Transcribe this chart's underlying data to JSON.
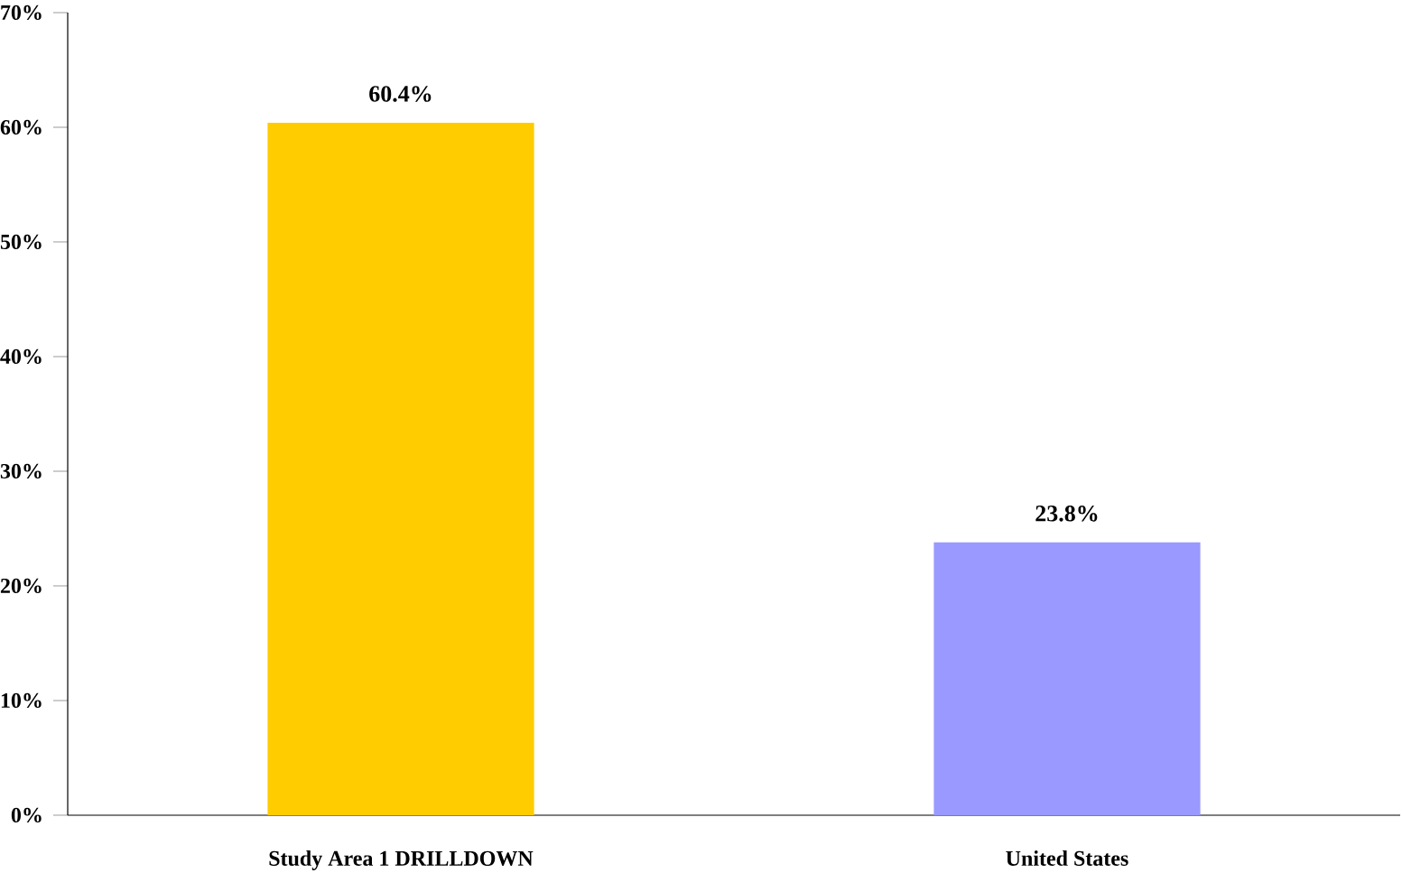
{
  "chart_data": {
    "type": "bar",
    "categories": [
      "Study Area 1 DRILLDOWN",
      "United States"
    ],
    "values": [
      60.4,
      23.8
    ],
    "colors": [
      "#ffcc00",
      "#9999ff"
    ],
    "value_labels": [
      "60.4%",
      "23.8%"
    ],
    "ylim": [
      0,
      70
    ],
    "yticks": [
      {
        "value": 0,
        "label": "0%"
      },
      {
        "value": 10,
        "label": "10%"
      },
      {
        "value": 20,
        "label": "20%"
      },
      {
        "value": 30,
        "label": "30%"
      },
      {
        "value": 40,
        "label": "40%"
      },
      {
        "value": 50,
        "label": "50%"
      },
      {
        "value": 60,
        "label": "60%"
      },
      {
        "value": 70,
        "label": "70%"
      }
    ]
  }
}
